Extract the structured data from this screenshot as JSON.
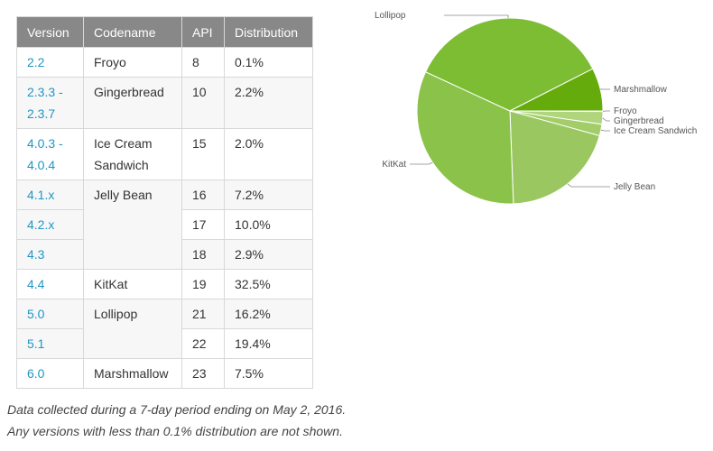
{
  "table": {
    "headers": [
      "Version",
      "Codename",
      "API",
      "Distribution"
    ],
    "rows": [
      {
        "version": "2.2",
        "codename": "Froyo",
        "api": "8",
        "distribution": "0.1%"
      },
      {
        "version": "2.3.3 -\n2.3.7",
        "codename": "Gingerbread",
        "api": "10",
        "distribution": "2.2%"
      },
      {
        "version": "4.0.3 -\n4.0.4",
        "codename": "Ice Cream\nSandwich",
        "api": "15",
        "distribution": "2.0%"
      },
      {
        "version": "4.1.x",
        "codename": "Jelly Bean",
        "api": "16",
        "distribution": "7.2%"
      },
      {
        "version": "4.2.x",
        "codename": "",
        "api": "17",
        "distribution": "10.0%"
      },
      {
        "version": "4.3",
        "codename": "",
        "api": "18",
        "distribution": "2.9%"
      },
      {
        "version": "4.4",
        "codename": "KitKat",
        "api": "19",
        "distribution": "32.5%"
      },
      {
        "version": "5.0",
        "codename": "Lollipop",
        "api": "21",
        "distribution": "16.2%"
      },
      {
        "version": "5.1",
        "codename": "",
        "api": "22",
        "distribution": "19.4%"
      },
      {
        "version": "6.0",
        "codename": "Marshmallow",
        "api": "23",
        "distribution": "7.5%"
      }
    ]
  },
  "footnotes": [
    "Data collected during a 7-day period ending on May 2, 2016.",
    "Any versions with less than 0.1% distribution are not shown."
  ],
  "chart_data": {
    "type": "pie",
    "labels": [
      "Froyo",
      "Gingerbread",
      "Ice Cream Sandwich",
      "Jelly Bean",
      "KitKat",
      "Lollipop",
      "Marshmallow"
    ],
    "values": [
      0.1,
      2.2,
      2.0,
      20.1,
      32.5,
      35.6,
      7.5
    ],
    "colors": [
      "#c5e2a0",
      "#b0d57c",
      "#a2cd68",
      "#9ac75f",
      "#8bc34a",
      "#7cbd33",
      "#66ab0c"
    ],
    "start": "3 o'clock, clockwise",
    "legend": "leader-line labels"
  }
}
